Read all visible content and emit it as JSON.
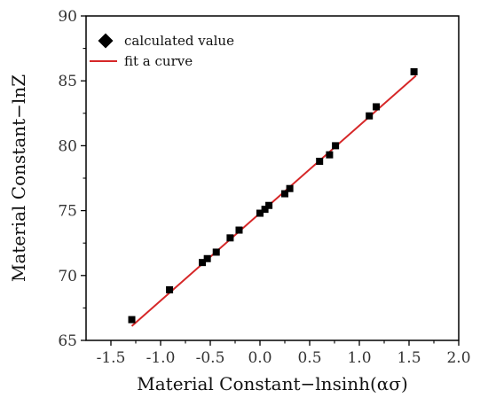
{
  "chart_data": {
    "type": "scatter",
    "title": "",
    "xlabel": "Material Constant−lnsinh(ασ)",
    "ylabel": "Material Constant−lnZ",
    "xlim": [
      -1.75,
      2.0
    ],
    "ylim": [
      65,
      90
    ],
    "xticks": [
      -1.5,
      -1.0,
      -0.5,
      0.0,
      0.5,
      1.0,
      1.5,
      2.0
    ],
    "xtick_labels": [
      "-1.5",
      "-1.0",
      "-0.5",
      "0.0",
      "0.5",
      "1.0",
      "1.5",
      "2.0"
    ],
    "yticks": [
      65,
      70,
      75,
      80,
      85,
      90
    ],
    "ytick_labels": [
      "65",
      "70",
      "75",
      "80",
      "85",
      "90"
    ],
    "grid": false,
    "legend_position": "top-left",
    "series": [
      {
        "name": "calculated value",
        "marker": "square",
        "color": "#000000",
        "x": [
          -1.29,
          -0.91,
          -0.58,
          -0.53,
          -0.44,
          -0.3,
          -0.21,
          0.0,
          0.05,
          0.09,
          0.25,
          0.3,
          0.6,
          0.7,
          0.76,
          1.1,
          1.17,
          1.55
        ],
        "y": [
          66.6,
          68.9,
          71.0,
          71.3,
          71.8,
          72.9,
          73.5,
          74.8,
          75.1,
          75.4,
          76.3,
          76.7,
          78.8,
          79.3,
          80.0,
          82.3,
          83.0,
          85.7
        ]
      },
      {
        "name": "fit a curve",
        "type": "line",
        "color": "#d62728",
        "x": [
          -1.29,
          1.57
        ],
        "y": [
          66.1,
          85.4
        ]
      }
    ]
  }
}
